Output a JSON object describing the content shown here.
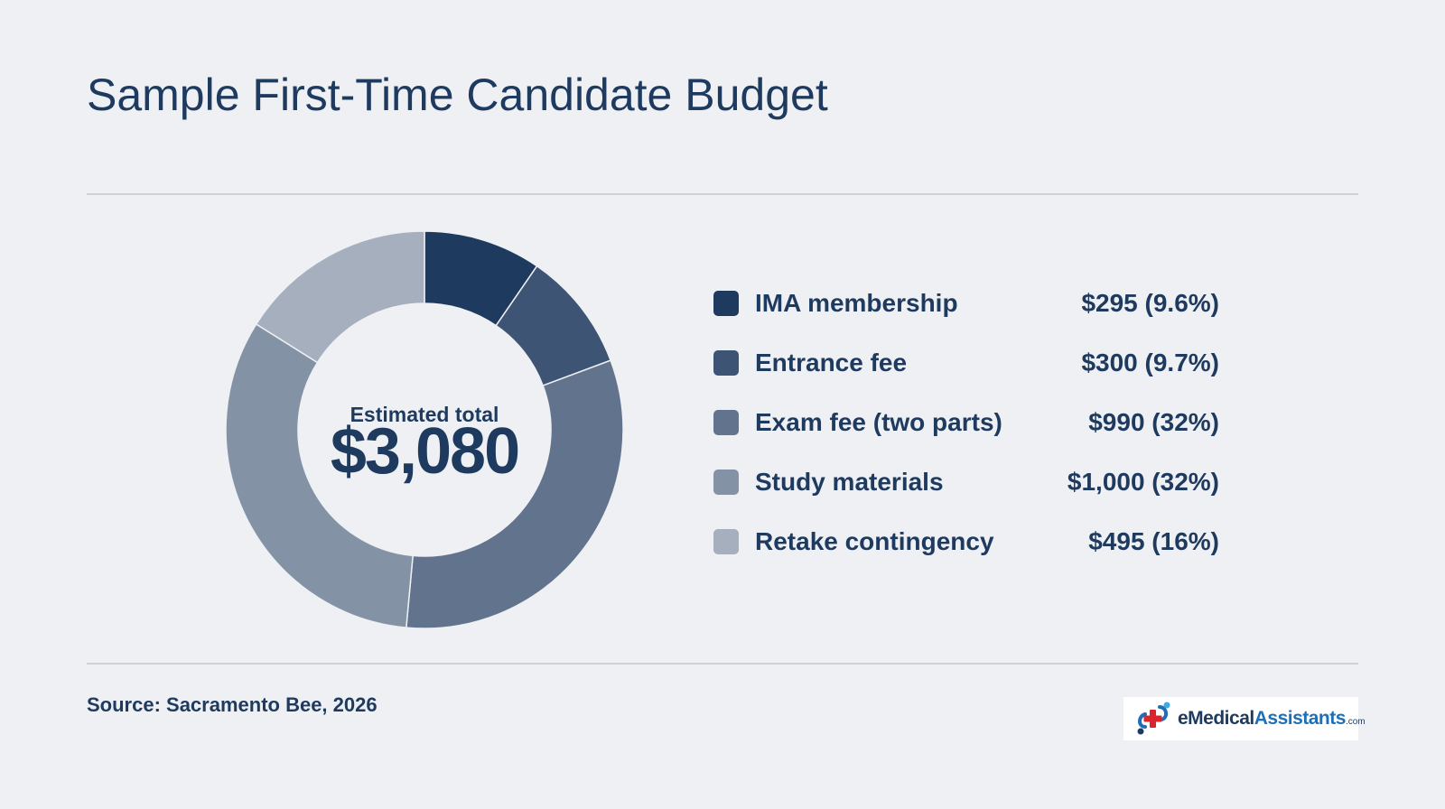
{
  "page": {
    "title": "Sample First-Time Candidate Budget",
    "source": "Source: Sacramento Bee, 2026"
  },
  "logo": {
    "part1": "eMedical",
    "part2": "Assistants",
    "part3": ".com"
  },
  "chart_data": {
    "type": "pie",
    "donut": true,
    "center_label": "Estimated total",
    "center_value": "$3,080",
    "legend_position": "right",
    "series": [
      {
        "name": "IMA membership",
        "value": 295,
        "display": "$295 (9.6%)",
        "color": "#1e3a5f"
      },
      {
        "name": "Entrance fee",
        "value": 300,
        "display": "$300 (9.7%)",
        "color": "#3e5474"
      },
      {
        "name": "Exam fee (two parts)",
        "value": 990,
        "display": "$990 (32%)",
        "color": "#62748d"
      },
      {
        "name": "Study materials",
        "value": 1000,
        "display": "$1,000 (32%)",
        "color": "#8492a6"
      },
      {
        "name": "Retake contingency",
        "value": 495,
        "display": "$495 (16%)",
        "color": "#a5afbd"
      }
    ]
  }
}
